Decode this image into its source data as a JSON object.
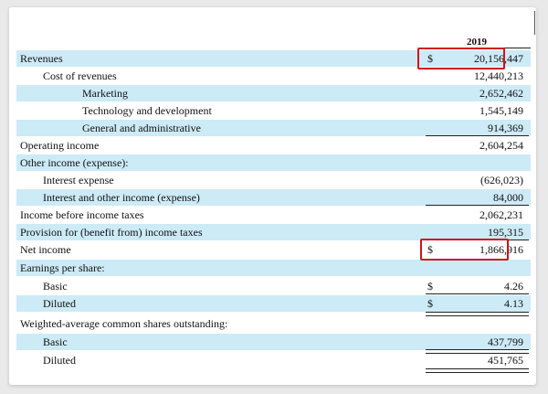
{
  "statement": {
    "year": "2019",
    "rows": [
      {
        "label": "Revenues",
        "dollar": "$",
        "value": "20,156,447"
      },
      {
        "label": "Cost of revenues",
        "dollar": "",
        "value": "12,440,213"
      },
      {
        "label": "Marketing",
        "dollar": "",
        "value": "2,652,462"
      },
      {
        "label": "Technology and development",
        "dollar": "",
        "value": "1,545,149"
      },
      {
        "label": "General and administrative",
        "dollar": "",
        "value": "914,369"
      },
      {
        "label": "Operating income",
        "dollar": "",
        "value": "2,604,254"
      },
      {
        "label": "Other income (expense):",
        "dollar": "",
        "value": ""
      },
      {
        "label": "Interest expense",
        "dollar": "",
        "value": "(626,023)"
      },
      {
        "label": "Interest and other income (expense)",
        "dollar": "",
        "value": "84,000"
      },
      {
        "label": "Income before income taxes",
        "dollar": "",
        "value": "2,062,231"
      },
      {
        "label": "Provision for (benefit from) income taxes",
        "dollar": "",
        "value": "195,315"
      },
      {
        "label": "Net income",
        "dollar": "$",
        "value": "1,866,916"
      },
      {
        "label": "Earnings per share:",
        "dollar": "",
        "value": ""
      },
      {
        "label": "Basic",
        "dollar": "$",
        "value": "4.26"
      },
      {
        "label": "Diluted",
        "dollar": "$",
        "value": "4.13"
      },
      {
        "label": "Weighted-average common shares outstanding:",
        "dollar": "",
        "value": ""
      },
      {
        "label": "Basic",
        "dollar": "",
        "value": "437,799"
      },
      {
        "label": "Diluted",
        "dollar": "",
        "value": "451,765"
      }
    ]
  },
  "colors": {
    "row_shade": "#cdeaf7",
    "highlight_border": "#d0121b"
  }
}
